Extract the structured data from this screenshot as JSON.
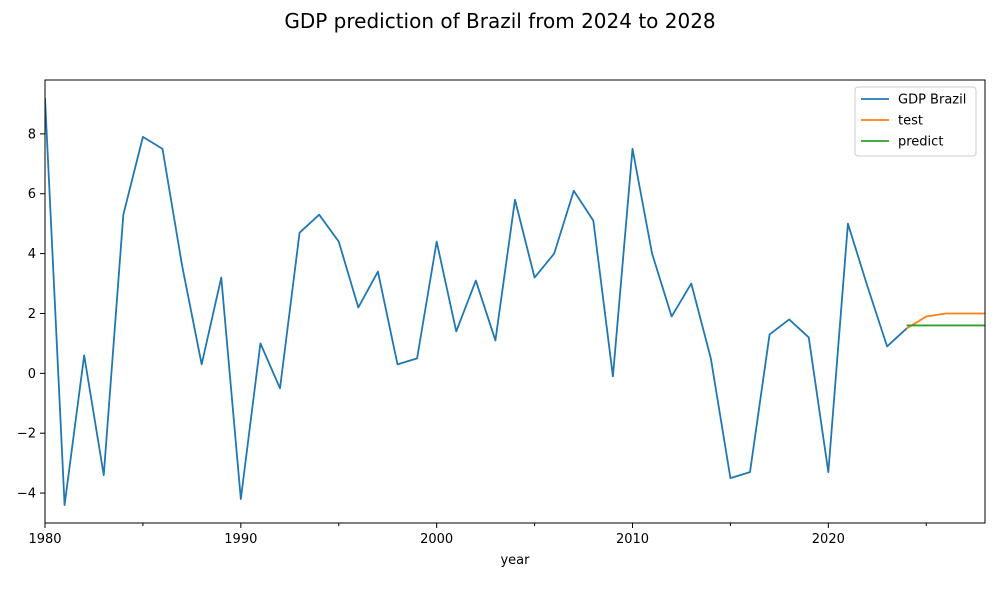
{
  "chart_data": {
    "type": "line",
    "title": "GDP prediction of Brazil from 2024 to 2028",
    "xlabel": "year",
    "ylabel": "",
    "xlim": [
      1980,
      2028
    ],
    "ylim": [
      -5,
      9.8
    ],
    "xticks": [
      1980,
      1990,
      2000,
      2010,
      2020
    ],
    "yticks": [
      -4,
      -2,
      0,
      2,
      4,
      6,
      8
    ],
    "grid": false,
    "legend_position": "top-right",
    "series": [
      {
        "name": "GDP Brazil",
        "color": "#1f77b4",
        "x": [
          1980,
          1981,
          1982,
          1983,
          1984,
          1985,
          1986,
          1987,
          1988,
          1989,
          1990,
          1991,
          1992,
          1993,
          1994,
          1995,
          1996,
          1997,
          1998,
          1999,
          2000,
          2001,
          2002,
          2003,
          2004,
          2005,
          2006,
          2007,
          2008,
          2009,
          2010,
          2011,
          2012,
          2013,
          2014,
          2015,
          2016,
          2017,
          2018,
          2019,
          2020,
          2021,
          2022,
          2023,
          2024
        ],
        "values": [
          9.2,
          -4.4,
          0.6,
          -3.4,
          5.3,
          7.9,
          7.5,
          3.6,
          0.3,
          3.2,
          -4.2,
          1.0,
          -0.5,
          4.7,
          5.3,
          4.4,
          2.2,
          3.4,
          0.3,
          0.5,
          4.4,
          1.4,
          3.1,
          1.1,
          5.8,
          3.2,
          4.0,
          6.1,
          5.1,
          -0.1,
          7.5,
          4.0,
          1.9,
          3.0,
          0.5,
          -3.5,
          -3.3,
          1.3,
          1.8,
          1.2,
          -3.3,
          5.0,
          2.9,
          0.9,
          1.5
        ]
      },
      {
        "name": "test",
        "color": "#ff7f0e",
        "x": [
          2024,
          2025,
          2026,
          2027,
          2028
        ],
        "values": [
          1.5,
          1.9,
          2.0,
          2.0,
          2.0
        ]
      },
      {
        "name": "predict",
        "color": "#2ca02c",
        "x": [
          2024,
          2025,
          2026,
          2027,
          2028
        ],
        "values": [
          1.6,
          1.6,
          1.6,
          1.6,
          1.6
        ]
      }
    ]
  }
}
